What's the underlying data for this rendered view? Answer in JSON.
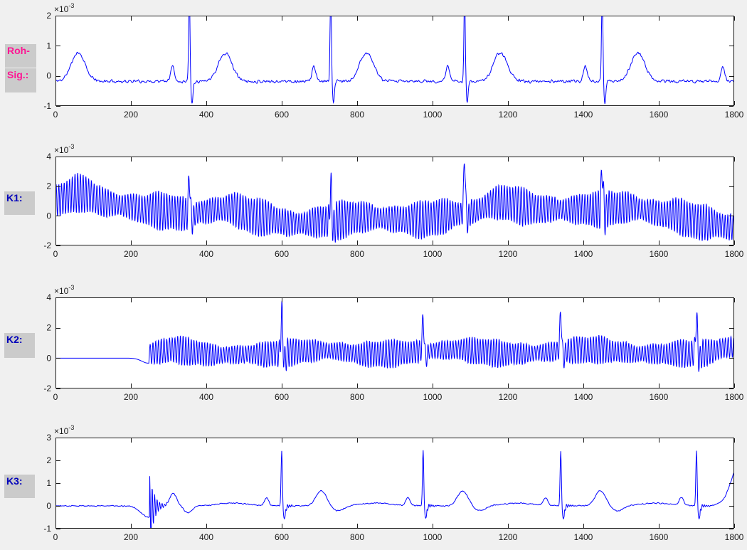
{
  "window": {
    "background": "#F0F0F0",
    "plot_background": "#FFFFFF",
    "axis_color": "#1A1A1A",
    "tick_label_color": "#1A1A1A"
  },
  "side_labels": {
    "roh_line1": "Roh-",
    "roh_line2": "Sig.:",
    "k1": "K1:",
    "k2": "K2:",
    "k3": "K3:",
    "raw_color": "#FF1493",
    "channel_color": "#0000BB",
    "box_background": "#CBCBCB"
  },
  "chart_data": [
    {
      "id": "roh_sig",
      "type": "line",
      "label": "Roh-Sig.",
      "line_color": "#0000FF",
      "xlim": [
        0,
        1800
      ],
      "ylim": [
        -1,
        2
      ],
      "y_scale": 0.001,
      "xticks": [
        0,
        200,
        400,
        600,
        800,
        1000,
        1200,
        1400,
        1600,
        1800
      ],
      "yticks": [
        -1,
        0,
        1,
        2
      ],
      "exponent_label": {
        "mantissa": "×10",
        "exponent": "-3"
      },
      "sample_step": 1,
      "signal": {
        "kind": "ecg_raw",
        "seed": 11,
        "baseline": -0.18,
        "noise_amp": 0.045,
        "beats": [
          -35,
          355,
          730,
          1085,
          1450,
          1815
        ],
        "p": {
          "offset": -45,
          "amp": 0.5,
          "width": 7
        },
        "r": {
          "offset": 0,
          "amp": 2.9,
          "width": 2.6
        },
        "s": {
          "offset": 7,
          "amp": -0.72,
          "width": 3.5
        },
        "t": {
          "offset": 95,
          "amp": 0.95,
          "width": 26
        }
      }
    },
    {
      "id": "k1",
      "type": "line",
      "label": "K1",
      "line_color": "#0000FF",
      "xlim": [
        0,
        1800
      ],
      "ylim": [
        -2,
        4
      ],
      "y_scale": 0.001,
      "xticks": [
        0,
        200,
        400,
        600,
        800,
        1000,
        1200,
        1400,
        1600,
        1800
      ],
      "yticks": [
        -2,
        0,
        2,
        4
      ],
      "exponent_label": {
        "mantissa": "×10",
        "exponent": "-3"
      },
      "sample_step": 0.5,
      "signal": {
        "kind": "osc_drift",
        "seed": 22,
        "noise_amp": 0.05,
        "wander_points": [
          [
            0,
            1.05
          ],
          [
            60,
            1.55
          ],
          [
            150,
            0.8
          ],
          [
            250,
            0.4
          ],
          [
            350,
            0.12
          ],
          [
            455,
            0.5
          ],
          [
            540,
            -0.1
          ],
          [
            640,
            -0.55
          ],
          [
            730,
            -0.35
          ],
          [
            820,
            -0.1
          ],
          [
            950,
            -0.3
          ],
          [
            1080,
            0.15
          ],
          [
            1180,
            0.88
          ],
          [
            1290,
            0.45
          ],
          [
            1400,
            0.42
          ],
          [
            1520,
            0.55
          ],
          [
            1620,
            0.1
          ],
          [
            1720,
            -0.45
          ],
          [
            1800,
            -0.8
          ]
        ],
        "beats": [
          355,
          730,
          1085,
          1450
        ],
        "r_amps": [
          2.6,
          2.5,
          3.9,
          2.9
        ],
        "r_width": 3,
        "s": {
          "offset": 8,
          "amp": -0.5,
          "width": 4
        },
        "osc": {
          "period": 7.3,
          "amp": 1.0,
          "amp_mod_period": 37,
          "amp_mod_depth": 0.25,
          "phase_mod_period": 57,
          "phase_mod_depth": 1.3
        }
      }
    },
    {
      "id": "k2",
      "type": "line",
      "label": "K2",
      "line_color": "#0000FF",
      "xlim": [
        0,
        1800
      ],
      "ylim": [
        -2,
        4
      ],
      "y_scale": 0.001,
      "xticks": [
        0,
        200,
        400,
        600,
        800,
        1000,
        1200,
        1400,
        1600,
        1800
      ],
      "yticks": [
        -2,
        0,
        2,
        4
      ],
      "exponent_label": {
        "mantissa": "×10",
        "exponent": "-3"
      },
      "sample_step": 0.5,
      "signal": {
        "kind": "onset_osc",
        "seed": 33,
        "noise_amp": 0.04,
        "onset": 248,
        "pre_dip": {
          "center": 246,
          "amp": -0.33,
          "width": 24
        },
        "mean_points": [
          [
            248,
            0.3
          ],
          [
            310,
            0.55
          ],
          [
            420,
            0.2
          ],
          [
            540,
            0.25
          ],
          [
            705,
            0.5
          ],
          [
            830,
            0.25
          ],
          [
            1070,
            0.55
          ],
          [
            1200,
            0.28
          ],
          [
            1430,
            0.55
          ],
          [
            1560,
            0.28
          ],
          [
            1700,
            0.3
          ],
          [
            1800,
            0.75
          ]
        ],
        "beats": [
          600,
          975,
          1340,
          1700
        ],
        "r_amps": [
          2.7,
          2.2,
          2.6,
          2.5
        ],
        "r_width": 3.2,
        "s": {
          "offset": 8,
          "amp": -0.5,
          "width": 4
        },
        "osc": {
          "period": 7.3,
          "amp": 0.72,
          "amp_mod_period": 43,
          "amp_mod_depth": 0.25,
          "phase_mod_period": 61,
          "phase_mod_depth": 1.1
        }
      }
    },
    {
      "id": "k3",
      "type": "line",
      "label": "K3",
      "line_color": "#0000FF",
      "xlim": [
        0,
        1800
      ],
      "ylim": [
        -1,
        3
      ],
      "y_scale": 0.001,
      "xticks": [
        0,
        200,
        400,
        600,
        800,
        1000,
        1200,
        1400,
        1600,
        1800
      ],
      "yticks": [
        -1,
        0,
        1,
        2,
        3
      ],
      "exponent_label": {
        "mantissa": "×10",
        "exponent": "-3"
      },
      "sample_step": 1,
      "signal": {
        "kind": "ecg_filtered",
        "seed": 44,
        "noise_amp": 0.022,
        "pre_dip": {
          "center": 247,
          "amp": -0.5,
          "width": 28
        },
        "transient": {
          "start": 250,
          "amp": 1.8,
          "decay": 11,
          "period": 6.5
        },
        "early_t_bump": {
          "center": 312,
          "amp": 0.55,
          "width": 13
        },
        "early_dip": {
          "center": 352,
          "amp": -0.3,
          "width": 15
        },
        "early_plateau": {
          "center": 470,
          "amp": 0.13,
          "width": 55
        },
        "beats": [
          600,
          975,
          1340,
          1700
        ],
        "p": {
          "offset": -40,
          "amp": 0.35,
          "width": 8
        },
        "r": {
          "offset": 0,
          "amp": 2.45,
          "width": 2.4
        },
        "s": {
          "offset": 7,
          "amp": -0.55,
          "width": 4
        },
        "ring": {
          "offset": 10,
          "amp": 0.14,
          "decay": 10,
          "period": 5.5
        },
        "t": {
          "offset": 105,
          "amp": 0.66,
          "width": 20
        },
        "post_t_dip": {
          "offset": 150,
          "amp": -0.22,
          "width": 22
        },
        "mid_plateau": {
          "offset": 250,
          "amp": 0.12,
          "width": 60
        },
        "end_rise": {
          "center": 1815,
          "amp": 1.0,
          "width": 38
        }
      }
    }
  ]
}
